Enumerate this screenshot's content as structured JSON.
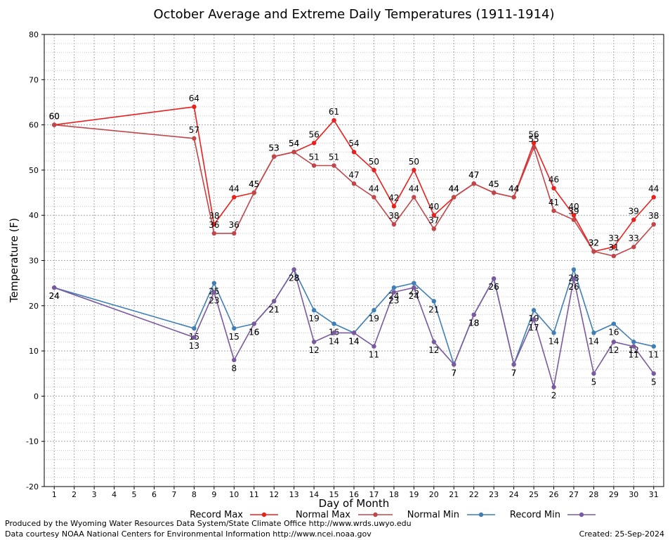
{
  "chart_data": {
    "type": "line",
    "title": "October Average and Extreme Daily Temperatures (1911-1914)",
    "xlabel": "Day of Month",
    "ylabel": "Temperature (F)",
    "ylim": [
      -20,
      80
    ],
    "yticks": [
      -20,
      -10,
      0,
      10,
      20,
      30,
      40,
      50,
      60,
      70,
      80
    ],
    "xlim": [
      0.5,
      31.5
    ],
    "xticks": [
      1,
      2,
      3,
      4,
      5,
      6,
      7,
      8,
      9,
      10,
      11,
      12,
      13,
      14,
      15,
      16,
      17,
      18,
      19,
      20,
      21,
      22,
      23,
      24,
      25,
      26,
      27,
      28,
      29,
      30,
      31
    ],
    "grid": true,
    "legend_position": "bottom",
    "series": [
      {
        "name": "Record Max",
        "color": "#e8201e",
        "label_side": "above",
        "x": [
          1,
          8,
          9,
          10,
          11,
          12,
          13,
          14,
          15,
          16,
          17,
          18,
          19,
          20,
          21,
          22,
          23,
          24,
          25,
          26,
          27,
          28,
          29,
          30,
          31
        ],
        "values": [
          60,
          64,
          38,
          44,
          45,
          53,
          54,
          56,
          61,
          54,
          50,
          42,
          50,
          40,
          44,
          47,
          45,
          44,
          56,
          46,
          40,
          32,
          33,
          39,
          44
        ]
      },
      {
        "name": "Normal Max",
        "color": "#c0464a",
        "label_side": "above",
        "x": [
          1,
          8,
          9,
          10,
          11,
          12,
          13,
          14,
          15,
          16,
          17,
          18,
          19,
          20,
          21,
          22,
          23,
          24,
          25,
          26,
          27,
          28,
          29,
          30,
          31
        ],
        "values": [
          60,
          57,
          36,
          36,
          45,
          53,
          54,
          51,
          51,
          47,
          44,
          38,
          44,
          37,
          44,
          47,
          45,
          44,
          55,
          41,
          39,
          32,
          31,
          33,
          38
        ]
      },
      {
        "name": "Normal Min",
        "color": "#3f7fb5",
        "label_side": "below",
        "x": [
          1,
          8,
          9,
          10,
          11,
          12,
          13,
          14,
          15,
          16,
          17,
          18,
          19,
          20,
          21,
          22,
          23,
          24,
          25,
          26,
          27,
          28,
          29,
          30,
          31
        ],
        "values": [
          24,
          15,
          25,
          15,
          16,
          21,
          28,
          19,
          16,
          14,
          19,
          24,
          25,
          21,
          7,
          18,
          26,
          7,
          19,
          14,
          28,
          14,
          16,
          12,
          11
        ]
      },
      {
        "name": "Record Min",
        "color": "#7a5a9e",
        "label_side": "below",
        "x": [
          1,
          8,
          9,
          10,
          11,
          12,
          13,
          14,
          15,
          16,
          17,
          18,
          19,
          20,
          21,
          22,
          23,
          24,
          25,
          26,
          27,
          28,
          29,
          30,
          31
        ],
        "values": [
          24,
          13,
          23,
          8,
          16,
          21,
          28,
          12,
          14,
          14,
          11,
          23,
          24,
          12,
          7,
          18,
          26,
          7,
          17,
          2,
          26,
          5,
          12,
          11,
          5
        ]
      }
    ]
  },
  "footer": {
    "credit": "Produced by the Wyoming Water Resources Data System/State Climate Office http://www.wrds.uwyo.edu",
    "source": "Data courtesy NOAA National Centers for Environmental Information http://www.ncei.noaa.gov",
    "created": "Created:  25-Sep-2024"
  }
}
